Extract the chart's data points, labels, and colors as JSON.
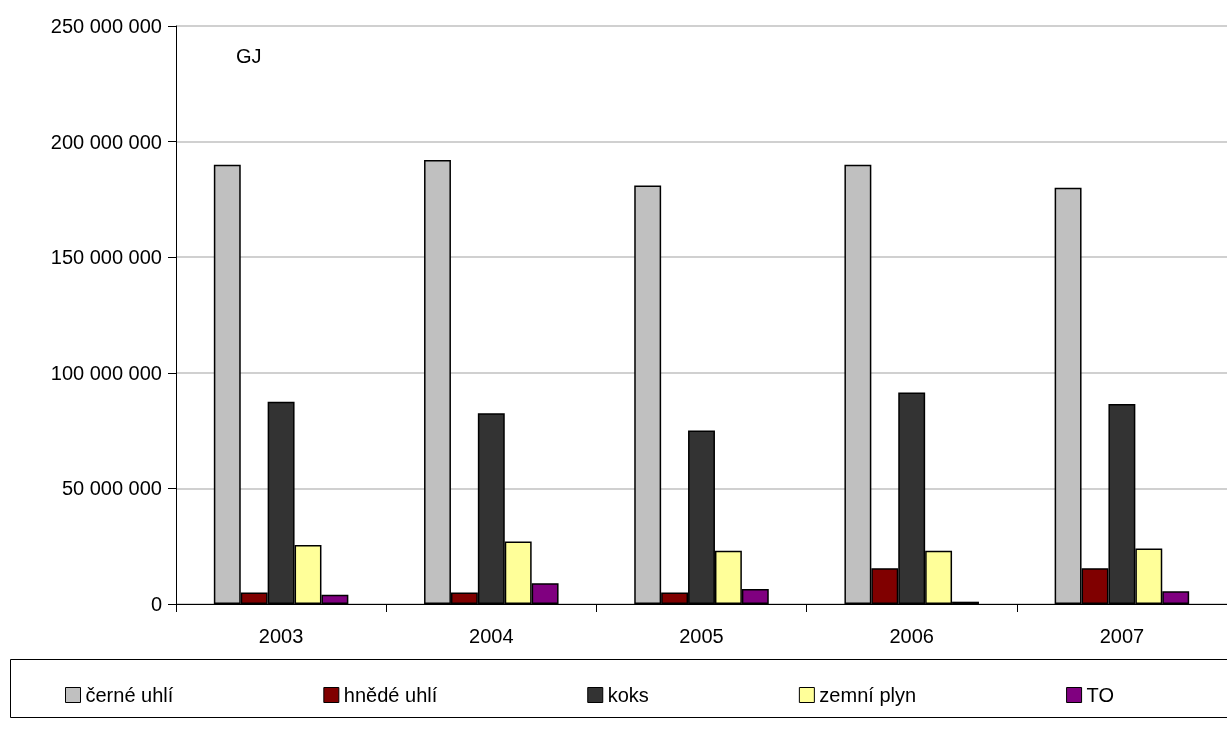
{
  "chart_data": {
    "type": "bar",
    "annotations": [
      "GJ"
    ],
    "categories": [
      "2003",
      "2004",
      "2005",
      "2006",
      "2007"
    ],
    "series": [
      {
        "name": "černé uhlí",
        "color": "#c0c0c0",
        "values": [
          190000000,
          192000000,
          181000000,
          190000000,
          180000000
        ]
      },
      {
        "name": "hnědé uhlí",
        "color": "#800000",
        "values": [
          5000000,
          5000000,
          5000000,
          15500000,
          15500000
        ]
      },
      {
        "name": "koks",
        "color": "#333333",
        "values": [
          87500000,
          82500000,
          75000000,
          91500000,
          86500000
        ]
      },
      {
        "name": "zemní plyn",
        "color": "#ffff99",
        "values": [
          25500000,
          27000000,
          23000000,
          23000000,
          24000000
        ]
      },
      {
        "name": "TO",
        "color": "#800080",
        "values": [
          4000000,
          9000000,
          6500000,
          1000000,
          5500000
        ]
      }
    ],
    "ylim": [
      0,
      250000000
    ],
    "yticks": [
      0,
      {
        "value": 50000000,
        "label": "50 000 000"
      },
      {
        "value": 100000000,
        "label": "100 000 000"
      },
      {
        "value": 150000000,
        "label": "150 000 000"
      },
      {
        "value": 200000000,
        "label": "200 000 000"
      },
      {
        "value": 250000000,
        "label": "250 000 000"
      }
    ],
    "grid": "y",
    "legend": "bottom"
  }
}
